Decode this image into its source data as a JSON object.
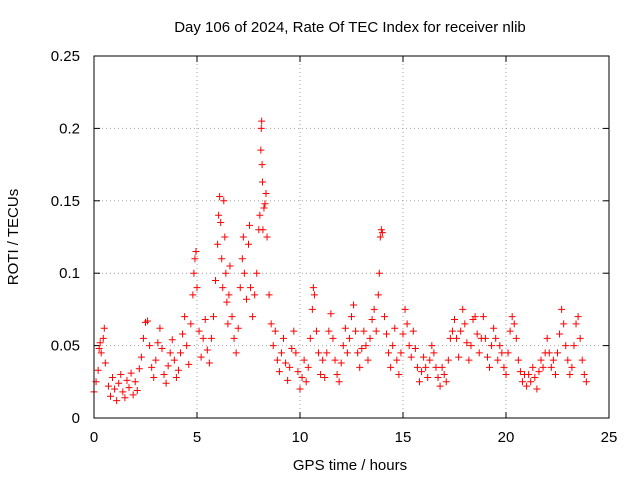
{
  "chart_data": {
    "type": "scatter",
    "title": "Day 106 of 2024, Rate Of TEC Index for receiver nlib",
    "xlabel": "GPS time / hours",
    "ylabel": "ROTI / TECUs",
    "xlim": [
      0,
      25
    ],
    "ylim": [
      0,
      0.25
    ],
    "xticks": [
      0,
      5,
      10,
      15,
      20,
      25
    ],
    "yticks": [
      0,
      0.05,
      0.1,
      0.15,
      0.2,
      0.25
    ],
    "xtick_labels": [
      "0",
      "5",
      "10",
      "15",
      "20",
      "25"
    ],
    "ytick_labels": [
      "0",
      "0.05",
      "0.1",
      "0.15",
      "0.2",
      "0.25"
    ],
    "grid": true,
    "marker": "+",
    "color": "#ff0000",
    "series": [
      {
        "name": "ROTI",
        "points": [
          [
            0.0,
            0.018
          ],
          [
            0.1,
            0.025
          ],
          [
            0.2,
            0.033
          ],
          [
            0.25,
            0.048
          ],
          [
            0.3,
            0.052
          ],
          [
            0.35,
            0.045
          ],
          [
            0.45,
            0.055
          ],
          [
            0.5,
            0.062
          ],
          [
            0.55,
            0.038
          ],
          [
            0.7,
            0.022
          ],
          [
            0.8,
            0.015
          ],
          [
            0.9,
            0.028
          ],
          [
            1.0,
            0.02
          ],
          [
            1.1,
            0.012
          ],
          [
            1.2,
            0.024
          ],
          [
            1.3,
            0.03
          ],
          [
            1.4,
            0.018
          ],
          [
            1.5,
            0.014
          ],
          [
            1.6,
            0.026
          ],
          [
            1.7,
            0.021
          ],
          [
            1.8,
            0.031
          ],
          [
            1.9,
            0.016
          ],
          [
            2.0,
            0.025
          ],
          [
            2.1,
            0.019
          ],
          [
            2.2,
            0.034
          ],
          [
            2.3,
            0.042
          ],
          [
            2.4,
            0.055
          ],
          [
            2.5,
            0.066
          ],
          [
            2.6,
            0.067
          ],
          [
            2.7,
            0.05
          ],
          [
            2.8,
            0.035
          ],
          [
            2.9,
            0.028
          ],
          [
            3.0,
            0.04
          ],
          [
            3.1,
            0.052
          ],
          [
            3.2,
            0.062
          ],
          [
            3.3,
            0.048
          ],
          [
            3.4,
            0.03
          ],
          [
            3.5,
            0.024
          ],
          [
            3.6,
            0.036
          ],
          [
            3.7,
            0.045
          ],
          [
            3.8,
            0.054
          ],
          [
            3.9,
            0.04
          ],
          [
            4.0,
            0.028
          ],
          [
            4.1,
            0.033
          ],
          [
            4.2,
            0.045
          ],
          [
            4.3,
            0.058
          ],
          [
            4.4,
            0.07
          ],
          [
            4.5,
            0.05
          ],
          [
            4.6,
            0.037
          ],
          [
            4.7,
            0.065
          ],
          [
            4.8,
            0.085
          ],
          [
            4.85,
            0.1
          ],
          [
            4.9,
            0.11
          ],
          [
            4.95,
            0.115
          ],
          [
            5.0,
            0.09
          ],
          [
            5.1,
            0.06
          ],
          [
            5.2,
            0.042
          ],
          [
            5.3,
            0.055
          ],
          [
            5.4,
            0.068
          ],
          [
            5.5,
            0.047
          ],
          [
            5.6,
            0.038
          ],
          [
            5.7,
            0.055
          ],
          [
            5.8,
            0.07
          ],
          [
            5.9,
            0.095
          ],
          [
            6.0,
            0.12
          ],
          [
            6.05,
            0.14
          ],
          [
            6.1,
            0.153
          ],
          [
            6.15,
            0.135
          ],
          [
            6.2,
            0.11
          ],
          [
            6.25,
            0.09
          ],
          [
            6.3,
            0.15
          ],
          [
            6.35,
            0.125
          ],
          [
            6.4,
            0.1
          ],
          [
            6.45,
            0.08
          ],
          [
            6.5,
            0.065
          ],
          [
            6.55,
            0.085
          ],
          [
            6.6,
            0.105
          ],
          [
            6.7,
            0.07
          ],
          [
            6.8,
            0.055
          ],
          [
            6.9,
            0.045
          ],
          [
            7.0,
            0.062
          ],
          [
            7.1,
            0.09
          ],
          [
            7.2,
            0.11
          ],
          [
            7.25,
            0.125
          ],
          [
            7.3,
            0.1
          ],
          [
            7.4,
            0.082
          ],
          [
            7.5,
            0.12
          ],
          [
            7.55,
            0.133
          ],
          [
            7.6,
            0.09
          ],
          [
            7.7,
            0.07
          ],
          [
            7.8,
            0.085
          ],
          [
            7.9,
            0.1
          ],
          [
            8.0,
            0.13
          ],
          [
            8.05,
            0.14
          ],
          [
            8.1,
            0.185
          ],
          [
            8.12,
            0.2
          ],
          [
            8.14,
            0.205
          ],
          [
            8.16,
            0.175
          ],
          [
            8.18,
            0.163
          ],
          [
            8.2,
            0.13
          ],
          [
            8.25,
            0.145
          ],
          [
            8.3,
            0.148
          ],
          [
            8.35,
            0.155
          ],
          [
            8.4,
            0.125
          ],
          [
            8.5,
            0.085
          ],
          [
            8.6,
            0.065
          ],
          [
            8.7,
            0.05
          ],
          [
            8.8,
            0.06
          ],
          [
            8.9,
            0.04
          ],
          [
            9.0,
            0.032
          ],
          [
            9.1,
            0.045
          ],
          [
            9.2,
            0.055
          ],
          [
            9.3,
            0.038
          ],
          [
            9.4,
            0.026
          ],
          [
            9.5,
            0.035
          ],
          [
            9.6,
            0.048
          ],
          [
            9.7,
            0.06
          ],
          [
            9.8,
            0.045
          ],
          [
            9.9,
            0.032
          ],
          [
            10.0,
            0.02
          ],
          [
            10.1,
            0.028
          ],
          [
            10.2,
            0.04
          ],
          [
            10.3,
            0.025
          ],
          [
            10.4,
            0.035
          ],
          [
            10.5,
            0.055
          ],
          [
            10.6,
            0.075
          ],
          [
            10.65,
            0.09
          ],
          [
            10.7,
            0.085
          ],
          [
            10.8,
            0.06
          ],
          [
            10.9,
            0.045
          ],
          [
            11.0,
            0.03
          ],
          [
            11.1,
            0.04
          ],
          [
            11.2,
            0.028
          ],
          [
            11.3,
            0.045
          ],
          [
            11.4,
            0.06
          ],
          [
            11.5,
            0.072
          ],
          [
            11.6,
            0.055
          ],
          [
            11.7,
            0.04
          ],
          [
            11.8,
            0.03
          ],
          [
            11.9,
            0.025
          ],
          [
            12.0,
            0.038
          ],
          [
            12.1,
            0.05
          ],
          [
            12.2,
            0.062
          ],
          [
            12.3,
            0.045
          ],
          [
            12.4,
            0.055
          ],
          [
            12.5,
            0.07
          ],
          [
            12.6,
            0.078
          ],
          [
            12.7,
            0.06
          ],
          [
            12.8,
            0.045
          ],
          [
            12.9,
            0.035
          ],
          [
            13.0,
            0.048
          ],
          [
            13.1,
            0.06
          ],
          [
            13.2,
            0.05
          ],
          [
            13.3,
            0.04
          ],
          [
            13.4,
            0.055
          ],
          [
            13.5,
            0.068
          ],
          [
            13.6,
            0.075
          ],
          [
            13.7,
            0.06
          ],
          [
            13.8,
            0.085
          ],
          [
            13.85,
            0.1
          ],
          [
            13.9,
            0.125
          ],
          [
            13.95,
            0.13
          ],
          [
            14.0,
            0.128
          ],
          [
            14.1,
            0.07
          ],
          [
            14.2,
            0.058
          ],
          [
            14.3,
            0.045
          ],
          [
            14.4,
            0.035
          ],
          [
            14.5,
            0.05
          ],
          [
            14.6,
            0.062
          ],
          [
            14.7,
            0.04
          ],
          [
            14.8,
            0.03
          ],
          [
            14.9,
            0.045
          ],
          [
            15.0,
            0.058
          ],
          [
            15.1,
            0.075
          ],
          [
            15.2,
            0.065
          ],
          [
            15.3,
            0.05
          ],
          [
            15.4,
            0.042
          ],
          [
            15.5,
            0.06
          ],
          [
            15.6,
            0.048
          ],
          [
            15.7,
            0.035
          ],
          [
            15.8,
            0.025
          ],
          [
            15.9,
            0.032
          ],
          [
            16.0,
            0.042
          ],
          [
            16.1,
            0.035
          ],
          [
            16.2,
            0.028
          ],
          [
            16.3,
            0.04
          ],
          [
            16.4,
            0.05
          ],
          [
            16.5,
            0.045
          ],
          [
            16.6,
            0.035
          ],
          [
            16.7,
            0.028
          ],
          [
            16.8,
            0.022
          ],
          [
            16.9,
            0.035
          ],
          [
            17.0,
            0.03
          ],
          [
            17.1,
            0.025
          ],
          [
            17.2,
            0.04
          ],
          [
            17.3,
            0.055
          ],
          [
            17.4,
            0.06
          ],
          [
            17.5,
            0.068
          ],
          [
            17.6,
            0.055
          ],
          [
            17.7,
            0.042
          ],
          [
            17.8,
            0.06
          ],
          [
            17.9,
            0.075
          ],
          [
            18.0,
            0.065
          ],
          [
            18.1,
            0.052
          ],
          [
            18.2,
            0.04
          ],
          [
            18.3,
            0.05
          ],
          [
            18.4,
            0.068
          ],
          [
            18.5,
            0.07
          ],
          [
            18.6,
            0.058
          ],
          [
            18.7,
            0.045
          ],
          [
            18.8,
            0.055
          ],
          [
            18.9,
            0.07
          ],
          [
            19.0,
            0.055
          ],
          [
            19.1,
            0.042
          ],
          [
            19.2,
            0.035
          ],
          [
            19.3,
            0.05
          ],
          [
            19.4,
            0.062
          ],
          [
            19.5,
            0.055
          ],
          [
            19.6,
            0.04
          ],
          [
            19.7,
            0.05
          ],
          [
            19.8,
            0.045
          ],
          [
            19.9,
            0.035
          ],
          [
            20.0,
            0.03
          ],
          [
            20.1,
            0.045
          ],
          [
            20.2,
            0.06
          ],
          [
            20.3,
            0.07
          ],
          [
            20.4,
            0.065
          ],
          [
            20.5,
            0.055
          ],
          [
            20.6,
            0.04
          ],
          [
            20.7,
            0.032
          ],
          [
            20.8,
            0.025
          ],
          [
            20.9,
            0.03
          ],
          [
            21.0,
            0.022
          ],
          [
            21.1,
            0.03
          ],
          [
            21.2,
            0.025
          ],
          [
            21.3,
            0.035
          ],
          [
            21.4,
            0.028
          ],
          [
            21.5,
            0.02
          ],
          [
            21.6,
            0.032
          ],
          [
            21.7,
            0.04
          ],
          [
            21.8,
            0.035
          ],
          [
            21.9,
            0.045
          ],
          [
            22.0,
            0.055
          ],
          [
            22.1,
            0.045
          ],
          [
            22.2,
            0.035
          ],
          [
            22.3,
            0.04
          ],
          [
            22.4,
            0.03
          ],
          [
            22.5,
            0.045
          ],
          [
            22.6,
            0.058
          ],
          [
            22.7,
            0.075
          ],
          [
            22.8,
            0.065
          ],
          [
            22.9,
            0.05
          ],
          [
            23.0,
            0.04
          ],
          [
            23.1,
            0.03
          ],
          [
            23.2,
            0.035
          ],
          [
            23.3,
            0.05
          ],
          [
            23.4,
            0.065
          ],
          [
            23.5,
            0.07
          ],
          [
            23.6,
            0.055
          ],
          [
            23.7,
            0.04
          ],
          [
            23.8,
            0.03
          ],
          [
            23.9,
            0.025
          ]
        ]
      }
    ]
  }
}
